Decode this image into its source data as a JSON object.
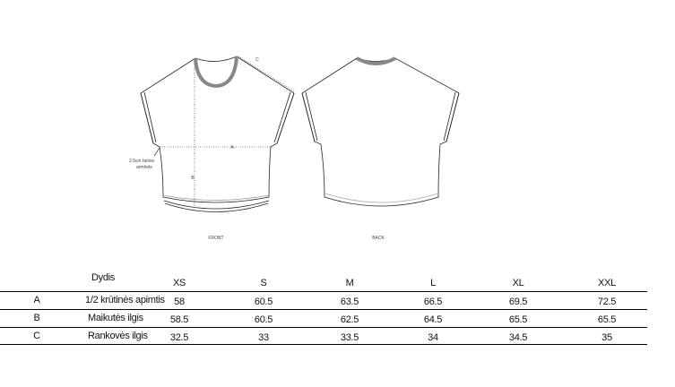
{
  "drawing": {
    "front_label": "FRONT",
    "back_label": "BACK",
    "note_line1": "2.5cm below",
    "note_line2": "armhole",
    "marker_a": "A",
    "marker_b": "B",
    "marker_c": "C"
  },
  "table": {
    "size_header": "Dydis",
    "sizes": [
      "XS",
      "S",
      "M",
      "L",
      "XL",
      "XXL"
    ],
    "rows": [
      {
        "code": "A",
        "label": "1/2 krūtinės apimtis",
        "values": [
          "58",
          "60.5",
          "63.5",
          "66.5",
          "69.5",
          "72.5"
        ]
      },
      {
        "code": "B",
        "label": "Maikutės ilgis",
        "values": [
          "58.5",
          "60.5",
          "62.5",
          "64.5",
          "65.5",
          "65.5"
        ]
      },
      {
        "code": "C",
        "label": "Rankovės ilgis",
        "values": [
          "32.5",
          "33",
          "33.5",
          "34",
          "34.5",
          "35"
        ]
      }
    ]
  }
}
